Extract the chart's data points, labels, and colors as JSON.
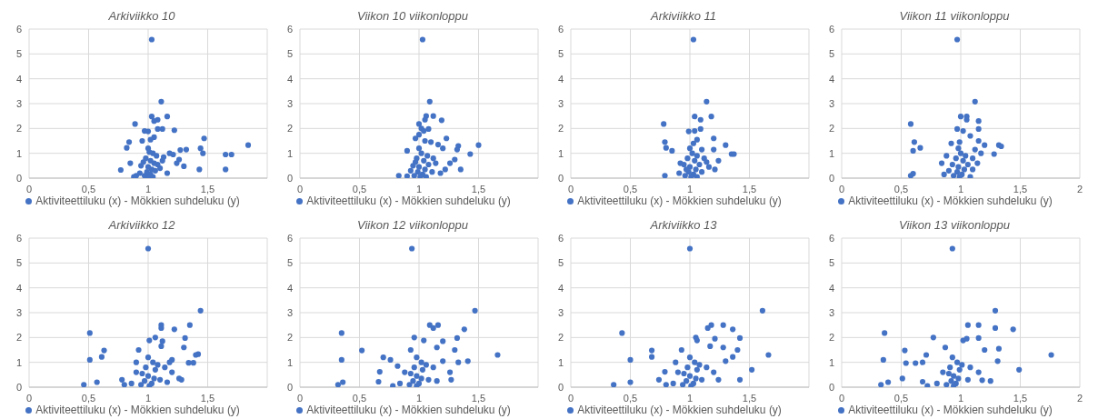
{
  "chart_data": [
    {
      "type": "scatter",
      "title": "Arkiviikko 10",
      "xlim": [
        0,
        2
      ],
      "xticks": [
        0,
        {
          "value": 0.5,
          "label": "0,5"
        },
        1,
        {
          "value": 1.5,
          "label": "1,5"
        },
        {
          "value": 2,
          "label": null
        }
      ],
      "ylim": [
        0,
        6
      ],
      "yticks": [
        0,
        1,
        2,
        3,
        4,
        5,
        6
      ],
      "grid": true,
      "legend": "bottom",
      "marker": "circle",
      "series": [
        {
          "name": "Aktiviteettiluku (x)  - Mökkien suhdeluku (y)",
          "color": "#4472c4",
          "x": [
            1.03,
            1.11,
            1.16,
            1.03,
            1.08,
            0.89,
            1.05,
            1.12,
            1.08,
            1.22,
            0.97,
            1.0,
            1.47,
            0.84,
            1.05,
            1.02,
            0.95,
            1.84,
            0.82,
            1.44,
            1.32,
            1.27,
            1.18,
            1.21,
            1.46,
            1.65,
            1.7,
            1.13,
            1.26,
            1.0,
            1.04,
            1.07,
            0.98,
            1.02,
            1.05,
            0.94,
            1.0,
            1.03,
            0.99,
            1.06,
            1.02,
            1.0,
            0.97,
            0.9,
            0.88,
            0.77,
            0.85,
            1.24,
            1.3,
            1.43,
            1.65,
            1.16,
            1.1,
            0.93,
            1.04,
            1.08,
            1.12,
            0.96,
            1.01
          ],
          "values": [
            5.58,
            3.08,
            2.48,
            2.48,
            2.35,
            2.18,
            2.3,
            1.98,
            1.98,
            1.93,
            1.9,
            1.88,
            1.6,
            1.45,
            1.65,
            1.55,
            1.5,
            1.33,
            1.22,
            1.2,
            1.15,
            1.13,
            1.0,
            0.95,
            1.0,
            0.95,
            0.95,
            0.85,
            0.75,
            1.2,
            1.0,
            0.9,
            0.8,
            0.7,
            0.6,
            0.5,
            0.45,
            0.35,
            0.25,
            0.3,
            0.15,
            0.05,
            0.1,
            0.1,
            0.05,
            0.33,
            0.6,
            0.6,
            0.48,
            0.35,
            0.35,
            0.2,
            0.4,
            0.2,
            0.05,
            0.55,
            0.7,
            0.65,
            1.05
          ]
        }
      ]
    },
    {
      "type": "scatter",
      "title": "Viikon 10 viikonloppu",
      "xlim": [
        0,
        2
      ],
      "xticks": [
        0,
        {
          "value": 0.5,
          "label": "0,5"
        },
        1,
        {
          "value": 1.5,
          "label": "1,5"
        },
        {
          "value": 2,
          "label": null
        }
      ],
      "ylim": [
        0,
        6
      ],
      "yticks": [
        0,
        1,
        2,
        3,
        4,
        5,
        6
      ],
      "grid": true,
      "legend": "bottom",
      "marker": "circle",
      "series": [
        {
          "name": "Aktiviteettiluku (x)  - Mökkien suhdeluku (y)",
          "color": "#4472c4",
          "x": [
            1.03,
            1.09,
            1.06,
            1.12,
            1.05,
            1.19,
            1.0,
            1.02,
            1.08,
            1.04,
            1.0,
            0.97,
            1.23,
            1.05,
            1.1,
            1.5,
            1.16,
            1.33,
            1.32,
            1.2,
            0.9,
            1.43,
            1.3,
            1.0,
            1.02,
            1.07,
            0.98,
            1.04,
            1.12,
            0.95,
            1.0,
            1.05,
            1.08,
            0.99,
            1.03,
            1.01,
            0.96,
            0.83,
            0.9,
            1.35,
            1.22,
            1.26,
            1.18,
            1.11,
            0.93,
            1.06,
            1.14,
            0.97
          ],
          "values": [
            5.58,
            3.08,
            2.5,
            2.5,
            2.35,
            2.33,
            2.18,
            2.0,
            1.98,
            1.9,
            1.75,
            1.6,
            1.6,
            1.5,
            1.45,
            1.33,
            1.35,
            1.3,
            1.15,
            1.2,
            1.1,
            0.97,
            0.75,
            1.2,
            1.0,
            0.9,
            0.8,
            0.7,
            0.8,
            0.5,
            0.45,
            0.35,
            0.55,
            0.25,
            0.15,
            0.05,
            0.1,
            0.1,
            0.08,
            0.35,
            0.35,
            0.6,
            0.2,
            0.25,
            0.3,
            0.05,
            0.6,
            0.65
          ]
        }
      ]
    },
    {
      "type": "scatter",
      "title": "Arkiviikko 11",
      "xlim": [
        0,
        2
      ],
      "xticks": [
        0,
        {
          "value": 0.5,
          "label": "0,5"
        },
        1,
        {
          "value": 1.5,
          "label": "1,5"
        },
        {
          "value": 2,
          "label": null
        }
      ],
      "ylim": [
        0,
        6
      ],
      "yticks": [
        0,
        1,
        2,
        3,
        4,
        5,
        6
      ],
      "grid": true,
      "legend": "bottom",
      "marker": "circle",
      "series": [
        {
          "name": "Aktiviteettiluku (x)  - Mökkien suhdeluku (y)",
          "color": "#4472c4",
          "x": [
            1.03,
            1.14,
            1.04,
            1.18,
            1.09,
            0.78,
            1.09,
            0.99,
            1.04,
            1.2,
            0.79,
            1.06,
            1.03,
            0.8,
            0.85,
            1.3,
            1.35,
            1.37,
            1.2,
            1.1,
            1.24,
            1.0,
            1.02,
            1.06,
            0.98,
            1.04,
            1.12,
            0.95,
            1.0,
            1.05,
            1.08,
            0.99,
            1.03,
            1.01,
            0.96,
            0.79,
            0.91,
            0.92,
            1.21,
            1.16,
            1.1,
            1.06,
            0.97,
            1.14
          ],
          "values": [
            5.58,
            3.08,
            2.48,
            2.48,
            2.35,
            2.18,
            1.98,
            1.88,
            1.9,
            1.6,
            1.45,
            1.55,
            1.4,
            1.22,
            1.1,
            1.33,
            0.97,
            0.97,
            1.15,
            1.15,
            0.7,
            1.2,
            1.0,
            0.9,
            0.8,
            0.7,
            0.8,
            0.55,
            0.45,
            0.35,
            0.55,
            0.25,
            0.15,
            0.05,
            0.1,
            0.1,
            0.2,
            0.6,
            0.35,
            0.45,
            0.25,
            0.05,
            0.35,
            0.65
          ]
        }
      ]
    },
    {
      "type": "scatter",
      "title": "Viikon 11 viikonloppu",
      "xlim": [
        0,
        2
      ],
      "xticks": [
        0,
        {
          "value": 0.5,
          "label": "0,5"
        },
        1,
        {
          "value": 1.5,
          "label": "1,5"
        },
        2
      ],
      "ylim": [
        0,
        6
      ],
      "yticks": [
        0,
        1,
        2,
        3,
        4,
        5,
        6
      ],
      "grid": true,
      "legend": "bottom",
      "marker": "circle",
      "series": [
        {
          "name": "Aktiviteettiluku (x)  - Mökkien suhdeluku (y)",
          "color": "#4472c4",
          "x": [
            0.97,
            1.12,
            1.0,
            1.05,
            1.05,
            1.15,
            0.58,
            0.97,
            1.15,
            1.02,
            1.08,
            0.61,
            1.15,
            0.99,
            1.2,
            1.32,
            1.34,
            0.66,
            0.6,
            1.12,
            1.28,
            1.17,
            0.98,
            1.0,
            1.04,
            0.96,
            1.02,
            1.1,
            0.93,
            0.98,
            1.03,
            1.06,
            0.97,
            1.01,
            0.99,
            0.94,
            0.86,
            0.58,
            0.6,
            0.84,
            0.9,
            1.1,
            1.14,
            1.08,
            0.88,
            0.92
          ],
          "values": [
            5.58,
            3.08,
            2.48,
            2.48,
            2.35,
            2.3,
            2.18,
            1.98,
            1.98,
            1.9,
            1.7,
            1.45,
            1.5,
            1.45,
            1.33,
            1.33,
            1.28,
            1.22,
            1.1,
            1.15,
            0.97,
            1.0,
            1.2,
            1.0,
            0.9,
            0.8,
            0.7,
            0.8,
            0.55,
            0.45,
            0.35,
            0.55,
            0.25,
            0.15,
            0.05,
            0.1,
            0.15,
            0.1,
            0.18,
            0.6,
            0.3,
            0.35,
            0.6,
            0.05,
            0.9,
            1.4
          ]
        }
      ]
    },
    {
      "type": "scatter",
      "title": "Arkiviikko 12",
      "xlim": [
        0,
        2
      ],
      "xticks": [
        0,
        {
          "value": 0.5,
          "label": "0,5"
        },
        1,
        {
          "value": 1.5,
          "label": "1,5"
        },
        {
          "value": 2,
          "label": null
        }
      ],
      "ylim": [
        0,
        6
      ],
      "yticks": [
        0,
        1,
        2,
        3,
        4,
        5,
        6
      ],
      "grid": true,
      "legend": "bottom",
      "marker": "circle",
      "series": [
        {
          "name": "Aktiviteettiluku (x)  - Mökkien suhdeluku (y)",
          "color": "#4472c4",
          "x": [
            1.0,
            1.44,
            1.11,
            1.35,
            1.11,
            1.22,
            0.51,
            1.06,
            1.31,
            1.01,
            1.12,
            0.63,
            1.3,
            1.11,
            0.92,
            1.42,
            1.4,
            0.61,
            0.51,
            1.2,
            1.34,
            1.38,
            1.0,
            1.04,
            1.08,
            0.98,
            1.06,
            1.14,
            0.95,
            1.0,
            1.05,
            0.9,
            0.97,
            1.03,
            1.01,
            0.94,
            0.86,
            0.8,
            0.78,
            0.46,
            0.57,
            1.26,
            1.28,
            1.2,
            1.1,
            1.16,
            0.9,
            1.18
          ],
          "values": [
            5.58,
            3.08,
            2.5,
            2.5,
            2.38,
            2.33,
            2.18,
            2.0,
            1.98,
            1.88,
            1.85,
            1.48,
            1.6,
            1.65,
            1.5,
            1.33,
            1.3,
            1.22,
            1.1,
            1.1,
            0.98,
            0.98,
            1.2,
            1.0,
            0.9,
            0.8,
            0.7,
            0.8,
            0.55,
            0.45,
            0.35,
            0.6,
            0.25,
            0.15,
            0.05,
            0.1,
            0.15,
            0.1,
            0.3,
            0.1,
            0.2,
            0.35,
            0.3,
            0.6,
            0.3,
            0.2,
            1.0,
            1.0
          ]
        }
      ]
    },
    {
      "type": "scatter",
      "title": "Viikon 12 viikonloppu",
      "xlim": [
        0,
        2
      ],
      "xticks": [
        0,
        {
          "value": 0.5,
          "label": "0,5"
        },
        1,
        {
          "value": 1.5,
          "label": "1,5"
        },
        {
          "value": 2,
          "label": null
        }
      ],
      "ylim": [
        0,
        6
      ],
      "yticks": [
        0,
        1,
        2,
        3,
        4,
        5,
        6
      ],
      "grid": true,
      "legend": "bottom",
      "marker": "circle",
      "series": [
        {
          "name": "Aktiviteettiluku (x)  - Mökkien suhdeluku (y)",
          "color": "#4472c4",
          "x": [
            0.94,
            1.47,
            1.09,
            1.16,
            1.12,
            1.38,
            0.35,
            0.96,
            1.32,
            1.04,
            1.2,
            0.52,
            1.15,
            1.3,
            0.93,
            1.66,
            0.7,
            0.35,
            1.41,
            1.33,
            0.76,
            0.98,
            1.02,
            1.06,
            0.96,
            1.03,
            1.12,
            0.93,
            0.98,
            1.02,
            0.88,
            0.95,
            1.0,
            0.98,
            0.92,
            0.84,
            0.78,
            0.66,
            0.67,
            0.32,
            0.36,
            1.27,
            1.26,
            1.15,
            1.08,
            0.82,
            1.2
          ],
          "values": [
            5.58,
            3.08,
            2.5,
            2.5,
            2.38,
            2.33,
            2.18,
            2.0,
            1.98,
            1.88,
            1.85,
            1.48,
            1.6,
            1.5,
            1.5,
            1.3,
            1.2,
            1.1,
            1.05,
            1.0,
            1.1,
            1.2,
            1.0,
            0.9,
            0.8,
            0.7,
            0.8,
            0.55,
            0.45,
            0.35,
            0.6,
            0.25,
            0.15,
            0.05,
            0.1,
            0.15,
            0.05,
            0.22,
            0.62,
            0.1,
            0.2,
            0.3,
            0.6,
            0.25,
            0.3,
            0.85,
            1.05
          ]
        }
      ]
    },
    {
      "type": "scatter",
      "title": "Arkiviikko 13",
      "xlim": [
        0,
        2
      ],
      "xticks": [
        0,
        {
          "value": 0.5,
          "label": "0,5"
        },
        1,
        {
          "value": 1.5,
          "label": "1,5"
        },
        {
          "value": 2,
          "label": null
        }
      ],
      "ylim": [
        0,
        6
      ],
      "yticks": [
        0,
        1,
        2,
        3,
        4,
        5,
        6
      ],
      "grid": true,
      "legend": "bottom",
      "marker": "circle",
      "series": [
        {
          "name": "Aktiviteettiluku (x)  - Mökkien suhdeluku (y)",
          "color": "#4472c4",
          "x": [
            1.0,
            1.61,
            1.18,
            1.28,
            1.15,
            1.36,
            0.43,
            1.05,
            1.42,
            1.21,
            1.06,
            0.68,
            1.28,
            0.93,
            1.17,
            1.66,
            1.4,
            0.68,
            0.5,
            1.36,
            1.3,
            1.52,
            1.0,
            1.04,
            1.08,
            0.98,
            1.06,
            1.14,
            0.95,
            1.0,
            1.05,
            0.9,
            0.97,
            1.03,
            1.01,
            0.94,
            0.86,
            0.8,
            0.74,
            0.36,
            0.5,
            1.42,
            1.24,
            1.2,
            1.1,
            0.79,
            0.88
          ],
          "values": [
            5.58,
            3.08,
            2.5,
            2.5,
            2.38,
            2.33,
            2.18,
            2.0,
            1.98,
            1.95,
            1.88,
            1.48,
            1.6,
            1.5,
            1.65,
            1.3,
            1.5,
            1.22,
            1.1,
            1.22,
            1.05,
            0.7,
            1.2,
            1.0,
            0.9,
            0.8,
            0.7,
            0.8,
            0.55,
            0.45,
            0.35,
            0.6,
            0.25,
            0.15,
            0.05,
            0.1,
            0.15,
            0.1,
            0.3,
            0.1,
            0.2,
            0.3,
            0.3,
            0.6,
            0.3,
            0.62,
            1.0
          ]
        }
      ]
    },
    {
      "type": "scatter",
      "title": "Viikon 13 viikonloppu",
      "xlim": [
        0,
        2
      ],
      "xticks": [
        0,
        {
          "value": 0.5,
          "label": "0,5"
        },
        1,
        {
          "value": 1.5,
          "label": "1,5"
        },
        2
      ],
      "ylim": [
        0,
        6
      ],
      "yticks": [
        0,
        1,
        2,
        3,
        4,
        5,
        6
      ],
      "grid": true,
      "legend": "bottom",
      "marker": "circle",
      "series": [
        {
          "name": "Aktiviteettiluku (x)  - Mökkien suhdeluku (y)",
          "color": "#4472c4",
          "x": [
            0.93,
            1.29,
            1.06,
            1.15,
            1.29,
            1.44,
            0.36,
            0.77,
            1.15,
            1.02,
            1.05,
            0.53,
            1.32,
            0.87,
            1.2,
            1.76,
            0.71,
            0.35,
            1.31,
            0.54,
            0.62,
            1.49,
            0.93,
            0.97,
            1.01,
            0.91,
            0.99,
            1.08,
            0.9,
            0.94,
            0.98,
            0.85,
            0.92,
            0.96,
            0.94,
            0.88,
            0.8,
            0.72,
            0.68,
            0.33,
            0.39,
            0.51,
            1.25,
            1.18,
            1.15,
            1.06,
            0.68
          ],
          "values": [
            5.58,
            3.08,
            2.5,
            2.5,
            2.38,
            2.33,
            2.18,
            2.0,
            1.98,
            1.88,
            1.95,
            1.48,
            1.55,
            1.6,
            1.5,
            1.3,
            1.3,
            1.1,
            1.05,
            0.97,
            0.97,
            0.7,
            1.2,
            1.0,
            0.9,
            0.8,
            0.7,
            0.8,
            0.55,
            0.45,
            0.35,
            0.6,
            0.25,
            0.15,
            0.05,
            0.1,
            0.15,
            0.05,
            0.22,
            0.1,
            0.2,
            0.35,
            0.25,
            0.28,
            0.6,
            0.3,
            1.0
          ]
        }
      ]
    }
  ]
}
